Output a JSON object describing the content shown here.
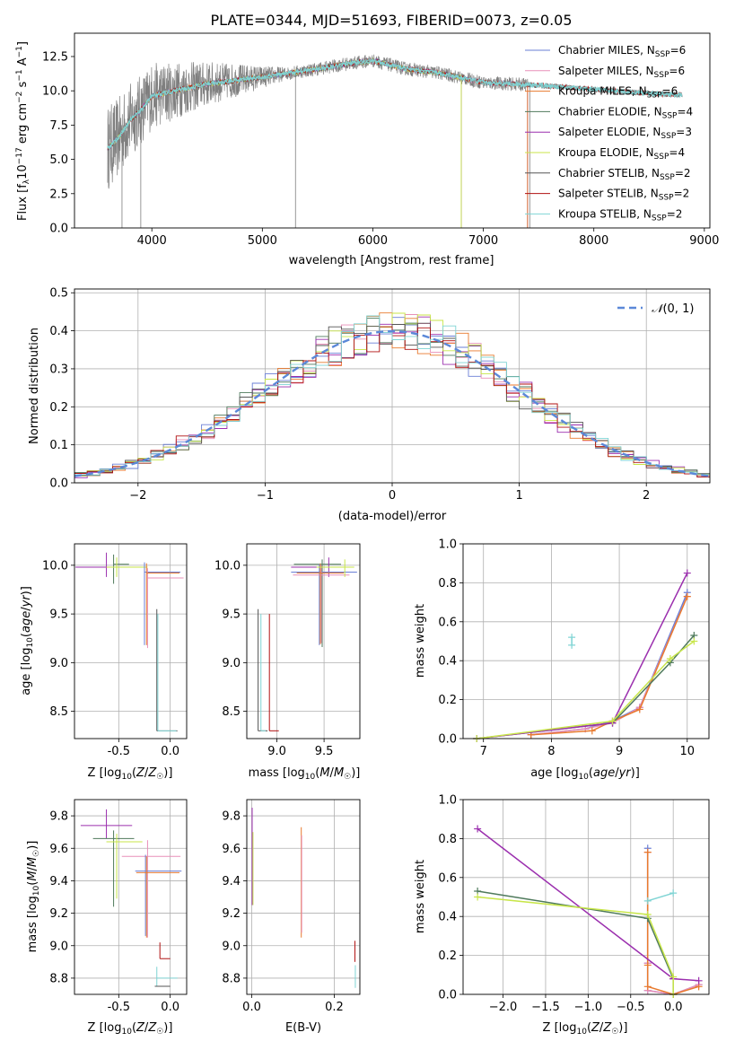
{
  "figure_title": "PLATE=0344, MJD=51693, FIBERID=0073, z=0.05",
  "legend_models": [
    {
      "label": "Chabrier MILES, N_SSP=6",
      "base": "Chabrier MILES, N",
      "sub": "SSP",
      "tail": "=6",
      "color": "#6a7fd6"
    },
    {
      "label": "Salpeter MILES, N_SSP=6",
      "base": "Salpeter MILES, N",
      "sub": "SSP",
      "tail": "=6",
      "color": "#e88fb8"
    },
    {
      "label": "Kroupa MILES, N_SSP=6",
      "base": "Kroupa MILES, N",
      "sub": "SSP",
      "tail": "=6",
      "color": "#e87a2e"
    },
    {
      "label": "Chabrier ELODIE, N_SSP=4",
      "base": "Chabrier ELODIE, N",
      "sub": "SSP",
      "tail": "=4",
      "color": "#4f7a5c"
    },
    {
      "label": "Salpeter ELODIE, N_SSP=3",
      "base": "Salpeter ELODIE, N",
      "sub": "SSP",
      "tail": "=3",
      "color": "#9b2fae"
    },
    {
      "label": "Kroupa ELODIE, N_SSP=4",
      "base": "Kroupa ELODIE, N",
      "sub": "SSP",
      "tail": "=4",
      "color": "#c8e64a"
    },
    {
      "label": "Chabrier STELIB, N_SSP=2",
      "base": "Chabrier STELIB, N",
      "sub": "SSP",
      "tail": "=2",
      "color": "#555555"
    },
    {
      "label": "Salpeter STELIB, N_SSP=2",
      "base": "Salpeter STELIB, N",
      "sub": "SSP",
      "tail": "=2",
      "color": "#b01010"
    },
    {
      "label": "Kroupa STELIB, N_SSP=2",
      "base": "Kroupa STELIB, N",
      "sub": "SSP",
      "tail": "=2",
      "color": "#7fd4d4"
    }
  ],
  "chart_data": [
    {
      "id": "spectrum",
      "type": "line",
      "xlabel": "wavelength [Angstrom, rest frame]",
      "ylabel": "Flux [f_λ 10^-17 erg cm^-2 s^-1 A^-1]",
      "xlim": [
        3300,
        9050
      ],
      "ylim": [
        0,
        14.2
      ],
      "xticks": [
        4000,
        5000,
        6000,
        7000,
        8000,
        9000
      ],
      "yticks": [
        0.0,
        2.5,
        5.0,
        7.5,
        10.0,
        12.5
      ],
      "grid": false,
      "legend": "right",
      "data_wavelength_range": [
        3600,
        8800
      ],
      "continuum": [
        [
          3600,
          5.8
        ],
        [
          3700,
          6.6
        ],
        [
          3800,
          7.8
        ],
        [
          3900,
          8.6
        ],
        [
          4000,
          9.6
        ],
        [
          4200,
          10.0
        ],
        [
          4500,
          10.5
        ],
        [
          5000,
          11.0
        ],
        [
          5500,
          11.6
        ],
        [
          5800,
          12.0
        ],
        [
          6000,
          12.2
        ],
        [
          6300,
          11.6
        ],
        [
          6600,
          11.3
        ],
        [
          7000,
          10.6
        ],
        [
          7500,
          10.4
        ],
        [
          8000,
          10.1
        ],
        [
          8500,
          9.8
        ],
        [
          8800,
          9.7
        ]
      ],
      "noise_amplitude_blue": 2.6,
      "noise_amplitude_red": 0.5
    },
    {
      "id": "residual_hist",
      "type": "histogram",
      "xlabel": "(data-model)/error",
      "ylabel": "Normed distribution",
      "xlim": [
        -2.5,
        2.5
      ],
      "ylim": [
        0,
        0.51
      ],
      "xticks": [
        -2,
        -1,
        0,
        1,
        2
      ],
      "yticks": [
        0.0,
        0.1,
        0.2,
        0.3,
        0.4,
        0.5
      ],
      "grid": true,
      "legend": "top-right",
      "reference_label": "N(0,1)",
      "reference_color": "#5b88d8",
      "bin_edges_start": -2.5,
      "bin_width": 0.1,
      "n_bins": 50,
      "gaussian_sigma": 1.0
    },
    {
      "id": "age_vs_Z",
      "type": "errorbar",
      "xlabel": "Z [log10(Z/Z☉)]",
      "ylabel": "age  [log10(age/yr)]",
      "xlim": [
        -0.93,
        0.16
      ],
      "ylim": [
        8.22,
        10.22
      ],
      "xticks": [
        -0.5,
        0.0
      ],
      "yticks": [
        8.5,
        9.0,
        9.5,
        10.0
      ],
      "xtick_labels": [
        "-0.5",
        "0.0"
      ],
      "ytick_labels": [
        "8.5",
        "9.0",
        "9.5",
        "10.0"
      ],
      "grid": true
    },
    {
      "id": "age_vs_mass",
      "type": "errorbar",
      "xlabel": "mass [log10(M/M☉)]",
      "ylabel": "",
      "xlim": [
        8.68,
        9.88
      ],
      "ylim": [
        8.22,
        10.22
      ],
      "xticks": [
        9.0,
        9.5
      ],
      "yticks": [
        8.5,
        9.0,
        9.5,
        10.0
      ],
      "xtick_labels": [
        "9.0",
        "9.5"
      ],
      "ytick_labels": [
        "8.5",
        "9.0",
        "9.5",
        "10.0"
      ],
      "grid": true
    },
    {
      "id": "massweight_vs_age",
      "type": "line",
      "xlabel": "age  [log10(age/yr)]",
      "ylabel": "mass weight",
      "xlim": [
        6.7,
        10.32
      ],
      "ylim": [
        0,
        1.0
      ],
      "xticks": [
        7,
        8,
        9,
        10
      ],
      "yticks": [
        0.0,
        0.2,
        0.4,
        0.6,
        0.8,
        1.0
      ],
      "xtick_labels": [
        "7",
        "8",
        "9",
        "10"
      ],
      "ytick_labels": [
        "0.0",
        "0.2",
        "0.4",
        "0.6",
        "0.8",
        "1.0"
      ],
      "grid": true,
      "series": [
        {
          "color": "#6a7fd6",
          "points": [
            [
              7.7,
              0.02
            ],
            [
              8.5,
              0.05
            ],
            [
              8.9,
              0.09
            ],
            [
              9.3,
              0.16
            ],
            [
              10.0,
              0.75
            ]
          ]
        },
        {
          "color": "#e88fb8",
          "points": [
            [
              7.7,
              0.02
            ],
            [
              8.5,
              0.05
            ],
            [
              8.9,
              0.08
            ],
            [
              9.3,
              0.16
            ],
            [
              10.0,
              0.73
            ]
          ]
        },
        {
          "color": "#e87a2e",
          "points": [
            [
              7.7,
              0.02
            ],
            [
              8.6,
              0.04
            ],
            [
              8.9,
              0.09
            ],
            [
              9.3,
              0.15
            ],
            [
              10.0,
              0.73
            ]
          ]
        },
        {
          "color": "#4f7a5c",
          "points": [
            [
              6.9,
              0.0
            ],
            [
              8.9,
              0.08
            ],
            [
              9.75,
              0.39
            ],
            [
              10.1,
              0.53
            ]
          ]
        },
        {
          "color": "#9b2fae",
          "points": [
            [
              6.9,
              0.0
            ],
            [
              8.9,
              0.08
            ],
            [
              10.0,
              0.85
            ]
          ]
        },
        {
          "color": "#c8e64a",
          "points": [
            [
              6.9,
              0.0
            ],
            [
              8.9,
              0.09
            ],
            [
              9.75,
              0.41
            ],
            [
              10.1,
              0.5
            ]
          ]
        },
        {
          "color": "#7fd4d4",
          "points": [
            [
              8.3,
              0.48
            ],
            [
              8.3,
              0.52
            ]
          ]
        }
      ]
    },
    {
      "id": "mass_vs_Z",
      "type": "errorbar",
      "xlabel": "Z [log10(Z/Z☉)]",
      "ylabel": "mass [log10(M/M☉)]",
      "xlim": [
        -0.93,
        0.16
      ],
      "ylim": [
        8.7,
        9.9
      ],
      "xticks": [
        -0.5,
        0.0
      ],
      "yticks": [
        8.8,
        9.0,
        9.2,
        9.4,
        9.6,
        9.8
      ],
      "xtick_labels": [
        "-0.5",
        "0.0"
      ],
      "ytick_labels": [
        "8.8",
        "9.0",
        "9.2",
        "9.4",
        "9.6",
        "9.8"
      ],
      "grid": true
    },
    {
      "id": "mass_vs_ebv",
      "type": "errorbar",
      "xlabel": "E(B-V)",
      "ylabel": "",
      "xlim": [
        -0.012,
        0.262
      ],
      "ylim": [
        8.7,
        9.9
      ],
      "xticks": [
        0.0,
        0.2
      ],
      "yticks": [
        8.8,
        9.0,
        9.2,
        9.4,
        9.6,
        9.8
      ],
      "xtick_labels": [
        "0.0",
        "0.2"
      ],
      "ytick_labels": [
        "8.8",
        "9.0",
        "9.2",
        "9.4",
        "9.6",
        "9.8"
      ],
      "grid": true
    },
    {
      "id": "massweight_vs_Z",
      "type": "line",
      "xlabel": "Z [log10(Z/Z☉)]",
      "ylabel": "mass weight",
      "xlim": [
        -2.47,
        0.42
      ],
      "ylim": [
        0,
        1.0
      ],
      "xticks": [
        -2.0,
        -1.5,
        -1.0,
        -0.5,
        0.0
      ],
      "yticks": [
        0.0,
        0.2,
        0.4,
        0.6,
        0.8,
        1.0
      ],
      "xtick_labels": [
        "−2.0",
        "−1.5",
        "−1.0",
        "−0.5",
        "0.0"
      ],
      "ytick_labels": [
        "0.0",
        "0.2",
        "0.4",
        "0.6",
        "0.8",
        "1.0"
      ],
      "grid": true,
      "series": [
        {
          "color": "#6a7fd6",
          "points": [
            [
              -0.3,
              0.75
            ],
            [
              -0.3,
              0.16
            ],
            [
              -0.3,
              0.02
            ],
            [
              0.0,
              0.0
            ],
            [
              0.3,
              0.05
            ]
          ]
        },
        {
          "color": "#e88fb8",
          "points": [
            [
              -0.3,
              0.73
            ],
            [
              -0.3,
              0.16
            ],
            [
              -0.3,
              0.02
            ],
            [
              0.0,
              0.0
            ],
            [
              0.3,
              0.05
            ]
          ]
        },
        {
          "color": "#e87a2e",
          "points": [
            [
              -0.3,
              0.73
            ],
            [
              -0.3,
              0.15
            ],
            [
              -0.3,
              0.04
            ],
            [
              0.0,
              0.0
            ],
            [
              0.3,
              0.04
            ]
          ]
        },
        {
          "color": "#4f7a5c",
          "points": [
            [
              -2.3,
              0.53
            ],
            [
              -0.3,
              0.39
            ],
            [
              0.0,
              0.08
            ],
            [
              0.0,
              0.0
            ]
          ]
        },
        {
          "color": "#9b2fae",
          "points": [
            [
              -2.3,
              0.85
            ],
            [
              0.0,
              0.08
            ],
            [
              0.3,
              0.07
            ]
          ]
        },
        {
          "color": "#c8e64a",
          "points": [
            [
              -2.3,
              0.5
            ],
            [
              -0.3,
              0.41
            ],
            [
              0.0,
              0.09
            ],
            [
              0.0,
              0.0
            ]
          ]
        },
        {
          "color": "#7fd4d4",
          "points": [
            [
              -0.3,
              0.48
            ],
            [
              0.0,
              0.52
            ]
          ]
        }
      ]
    }
  ]
}
